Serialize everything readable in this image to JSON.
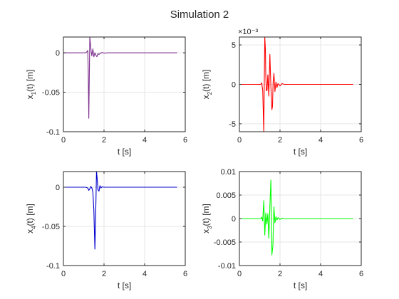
{
  "figure": {
    "title": "Simulation 2"
  },
  "chart_data": [
    {
      "type": "line",
      "xlabel": "t [s]",
      "ylabel": "x_1(t) [m]",
      "ylabel_base": "x",
      "ylabel_sub": "1",
      "ylabel_tail": "(t) [m]",
      "xlim": [
        0,
        6
      ],
      "ylim": [
        -0.1,
        0.02
      ],
      "xticks": [
        0,
        2,
        4,
        6
      ],
      "xtick_labels": [
        "0",
        "2",
        "4",
        "6"
      ],
      "yticks": [
        0,
        -0.05,
        -0.1
      ],
      "ytick_labels": [
        "0",
        "-0.05",
        "-0.1"
      ],
      "exponent_label": "",
      "grid": true,
      "color": "#7e2f8e",
      "series": [
        {
          "x": [
            0,
            1.1,
            1.15,
            1.2,
            1.22,
            1.25,
            1.28,
            1.3,
            1.33,
            1.36,
            1.4,
            1.45,
            1.5,
            1.55,
            1.6,
            1.65,
            1.7,
            1.75,
            1.8,
            1.9,
            2.0,
            2.2,
            5.6
          ],
          "y": [
            0,
            0,
            0.001,
            0.003,
            -0.02,
            -0.083,
            -0.02,
            0.02,
            0.012,
            0.003,
            -0.004,
            0.005,
            -0.005,
            0.0,
            -0.003,
            -0.005,
            -0.001,
            -0.002,
            -0.001,
            0.0005,
            -0.0005,
            0,
            0
          ]
        }
      ]
    },
    {
      "type": "line",
      "xlabel": "t [s]",
      "ylabel": "x_2(t) [m]",
      "ylabel_base": "x",
      "ylabel_sub": "2",
      "ylabel_tail": "(t) [m]",
      "xlim": [
        0,
        6
      ],
      "ylim": [
        -0.006,
        0.006
      ],
      "xticks": [
        0,
        2,
        4,
        6
      ],
      "xtick_labels": [
        "0",
        "2",
        "4",
        "6"
      ],
      "yticks": [
        0.005,
        0,
        -0.005
      ],
      "ytick_labels": [
        "5",
        "0",
        "-5"
      ],
      "exponent_label": "×10⁻³",
      "grid": true,
      "color": "#ff0000",
      "series": [
        {
          "x": [
            0,
            1.05,
            1.1,
            1.15,
            1.2,
            1.25,
            1.28,
            1.3,
            1.33,
            1.36,
            1.4,
            1.45,
            1.5,
            1.55,
            1.6,
            1.63,
            1.66,
            1.7,
            1.75,
            1.8,
            1.85,
            1.9,
            2.0,
            2.1,
            2.2,
            2.4,
            5.6
          ],
          "y": [
            0,
            0,
            0.0002,
            -0.0008,
            -0.006,
            0.006,
            0.0045,
            0.001,
            -0.0008,
            -0.0008,
            0.0012,
            -0.0015,
            0.0038,
            -0.0002,
            -0.0032,
            -0.0028,
            0.0002,
            0.0014,
            -0.0009,
            0.0003,
            -0.0004,
            0.0001,
            -0.0002,
            0.0001,
            0,
            0,
            0
          ]
        }
      ]
    },
    {
      "type": "line",
      "xlabel": "t [s]",
      "ylabel": "x_4(t) [m]",
      "ylabel_base": "x",
      "ylabel_sub": "4",
      "ylabel_tail": "(t) [m]",
      "xlim": [
        0,
        6
      ],
      "ylim": [
        -0.1,
        0.02
      ],
      "xticks": [
        0,
        2,
        4,
        6
      ],
      "xtick_labels": [
        "0",
        "2",
        "4",
        "6"
      ],
      "yticks": [
        0,
        -0.05,
        -0.1
      ],
      "ytick_labels": [
        "0",
        "-0.05",
        "-0.1"
      ],
      "exponent_label": "",
      "grid": true,
      "color": "#0000cd",
      "series": [
        {
          "x": [
            0,
            1.1,
            1.2,
            1.25,
            1.3,
            1.35,
            1.4,
            1.45,
            1.5,
            1.55,
            1.6,
            1.63,
            1.66,
            1.7,
            1.75,
            1.8,
            1.85,
            1.9,
            2.0,
            2.2,
            5.6
          ],
          "y": [
            0,
            0,
            -0.001,
            -0.004,
            -0.002,
            0.001,
            -0.001,
            -0.006,
            -0.03,
            -0.079,
            -0.02,
            0.02,
            0.012,
            -0.003,
            -0.005,
            0.002,
            -0.001,
            0.0005,
            0,
            0,
            0
          ]
        }
      ]
    },
    {
      "type": "line",
      "xlabel": "t [s]",
      "ylabel": "x_3(t) [m]",
      "ylabel_base": "x",
      "ylabel_sub": "3",
      "ylabel_tail": "(t) [m]",
      "xlim": [
        0,
        6
      ],
      "ylim": [
        -0.01,
        0.01
      ],
      "xticks": [
        0,
        2,
        4,
        6
      ],
      "xtick_labels": [
        "0",
        "2",
        "4",
        "6"
      ],
      "yticks": [
        0.01,
        0.005,
        0,
        -0.005,
        -0.01
      ],
      "ytick_labels": [
        "0.01",
        "0.005",
        "0",
        "-0.005",
        "-0.01"
      ],
      "exponent_label": "",
      "grid": true,
      "color": "#00ff00",
      "series": [
        {
          "x": [
            0,
            1.05,
            1.1,
            1.15,
            1.2,
            1.25,
            1.3,
            1.35,
            1.4,
            1.45,
            1.5,
            1.55,
            1.6,
            1.65,
            1.7,
            1.75,
            1.8,
            1.85,
            1.9,
            2.0,
            2.1,
            2.2,
            2.4,
            5.6
          ],
          "y": [
            0,
            0,
            0.0003,
            -0.0005,
            0.0038,
            -0.0035,
            0.0012,
            -0.0012,
            0.001,
            -0.0042,
            0.0025,
            0.0082,
            -0.0077,
            -0.0058,
            0.0025,
            -0.0009,
            0.0004,
            -0.0003,
            0.0002,
            -0.0002,
            0.0001,
            0,
            0,
            0
          ]
        }
      ]
    }
  ]
}
